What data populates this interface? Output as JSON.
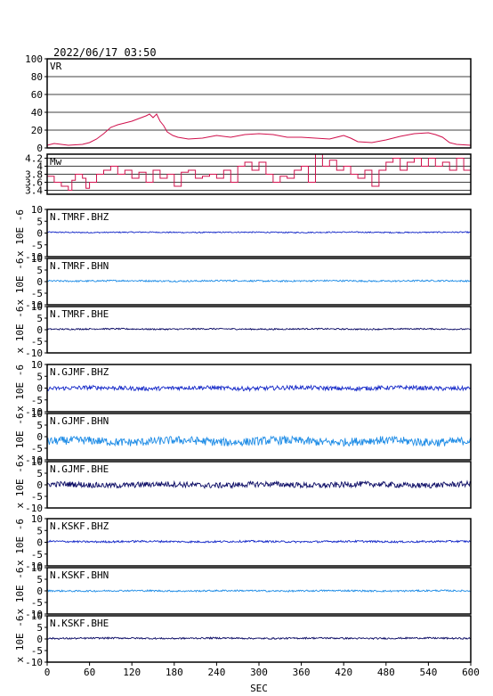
{
  "header": {
    "timestamp": "2022/06/17  03:50"
  },
  "xaxis": {
    "label": "SEC",
    "ticks": [
      0,
      60,
      120,
      180,
      240,
      300,
      360,
      420,
      480,
      540,
      600
    ],
    "xlim": [
      0,
      600
    ]
  },
  "colors": {
    "vr": "#d0104c",
    "mw": "#d0104c",
    "bhz": "#1428c8",
    "bhn": "#1e8ce6",
    "bhe": "#0a0a64",
    "frame": "#000000",
    "grid": "#000000"
  },
  "chart_data": [
    {
      "type": "line",
      "title": "VR",
      "ylim": [
        0,
        100
      ],
      "yticks": [
        0,
        20,
        40,
        60,
        80,
        100
      ],
      "grid": true,
      "x": [
        0,
        10,
        30,
        50,
        60,
        70,
        80,
        90,
        100,
        110,
        120,
        130,
        140,
        145,
        150,
        155,
        160,
        165,
        170,
        178,
        185,
        200,
        220,
        240,
        260,
        280,
        300,
        320,
        340,
        360,
        380,
        400,
        420,
        430,
        440,
        460,
        480,
        500,
        520,
        540,
        550,
        560,
        570,
        580,
        600
      ],
      "values": [
        3,
        5,
        3,
        4,
        6,
        10,
        16,
        23,
        26,
        28,
        30,
        33,
        36,
        38,
        34,
        38,
        30,
        25,
        18,
        14,
        12,
        10,
        11,
        14,
        12,
        15,
        16,
        15,
        12,
        12,
        11,
        10,
        14,
        11,
        7,
        6,
        9,
        13,
        16,
        17,
        15,
        12,
        6,
        4,
        3
      ]
    },
    {
      "type": "line",
      "title": "Mw",
      "ylim": [
        3.3,
        4.3
      ],
      "yticks": [
        3.4,
        3.6,
        3.8,
        4.0,
        4.2
      ],
      "grid": true,
      "x": [
        0,
        10,
        20,
        30,
        35,
        40,
        50,
        55,
        60,
        70,
        80,
        90,
        100,
        110,
        120,
        130,
        140,
        150,
        160,
        170,
        180,
        190,
        200,
        210,
        220,
        230,
        240,
        250,
        260,
        270,
        280,
        290,
        300,
        310,
        320,
        330,
        340,
        350,
        360,
        370,
        380,
        390,
        400,
        410,
        420,
        430,
        440,
        450,
        460,
        470,
        480,
        490,
        500,
        510,
        520,
        530,
        540,
        550,
        560,
        570,
        580,
        590,
        600
      ],
      "values": [
        3.75,
        3.6,
        3.5,
        3.4,
        3.65,
        3.8,
        3.7,
        3.45,
        3.6,
        3.8,
        3.9,
        4.0,
        3.8,
        3.9,
        3.7,
        3.85,
        3.6,
        3.9,
        3.7,
        3.8,
        3.5,
        3.85,
        3.9,
        3.7,
        3.75,
        3.8,
        3.7,
        3.9,
        3.6,
        4.0,
        4.1,
        3.9,
        4.1,
        3.8,
        3.6,
        3.75,
        3.7,
        3.9,
        4.0,
        3.6,
        4.3,
        4.0,
        4.15,
        3.9,
        4.0,
        3.8,
        3.7,
        3.9,
        3.5,
        3.9,
        4.1,
        4.2,
        3.9,
        4.1,
        4.2,
        4.0,
        4.2,
        4.0,
        4.1,
        3.9,
        4.2,
        3.9,
        3.7
      ]
    },
    {
      "type": "line",
      "title": "N.TMRF.BHZ",
      "ylabel": "x 10E -6",
      "ylim": [
        -10,
        10
      ],
      "yticks": [
        -10,
        -5,
        0,
        5,
        10
      ],
      "baseline": 0.3,
      "amplitude": 0.25,
      "color_key": "bhz"
    },
    {
      "type": "line",
      "title": "N.TMRF.BHN",
      "ylabel": "x 10E -6",
      "ylim": [
        -10,
        10
      ],
      "yticks": [
        -10,
        -5,
        0,
        5,
        10
      ],
      "baseline": 0.3,
      "amplitude": 0.35,
      "color_key": "bhn"
    },
    {
      "type": "line",
      "title": "N.TMRF.BHE",
      "ylabel": "x 10E -6",
      "ylim": [
        -10,
        10
      ],
      "yticks": [
        -10,
        -5,
        0,
        5,
        10
      ],
      "baseline": 0.3,
      "amplitude": 0.3,
      "color_key": "bhe"
    },
    {
      "type": "line",
      "title": "N.GJMF.BHZ",
      "ylabel": "x 10E -6",
      "ylim": [
        -10,
        10
      ],
      "yticks": [
        -10,
        -5,
        0,
        5,
        10
      ],
      "baseline": 0.0,
      "amplitude": 0.9,
      "color_key": "bhz"
    },
    {
      "type": "line",
      "title": "N.GJMF.BHN",
      "ylabel": "x 10E -6",
      "ylim": [
        -10,
        10
      ],
      "yticks": [
        -10,
        -5,
        0,
        5,
        10
      ],
      "baseline": -2.0,
      "amplitude": 1.8,
      "color_key": "bhn"
    },
    {
      "type": "line",
      "title": "N.GJMF.BHE",
      "ylabel": "x 10E -6",
      "ylim": [
        -10,
        10
      ],
      "yticks": [
        -10,
        -5,
        0,
        5,
        10
      ],
      "baseline": 0.0,
      "amplitude": 1.2,
      "color_key": "bhe"
    },
    {
      "type": "line",
      "title": "N.KSKF.BHZ",
      "ylabel": "x 10E -6",
      "ylim": [
        -10,
        10
      ],
      "yticks": [
        -10,
        -5,
        0,
        5,
        10
      ],
      "baseline": 0.3,
      "amplitude": 0.4,
      "color_key": "bhz"
    },
    {
      "type": "line",
      "title": "N.KSKF.BHN",
      "ylabel": "x 10E -6",
      "ylim": [
        -10,
        10
      ],
      "yticks": [
        -10,
        -5,
        0,
        5,
        10
      ],
      "baseline": 0.0,
      "amplitude": 0.35,
      "color_key": "bhn"
    },
    {
      "type": "line",
      "title": "N.KSKF.BHE",
      "ylabel": "x 10E -6",
      "ylim": [
        -10,
        10
      ],
      "yticks": [
        -10,
        -5,
        0,
        5,
        10
      ],
      "baseline": 0.3,
      "amplitude": 0.35,
      "color_key": "bhe"
    }
  ]
}
